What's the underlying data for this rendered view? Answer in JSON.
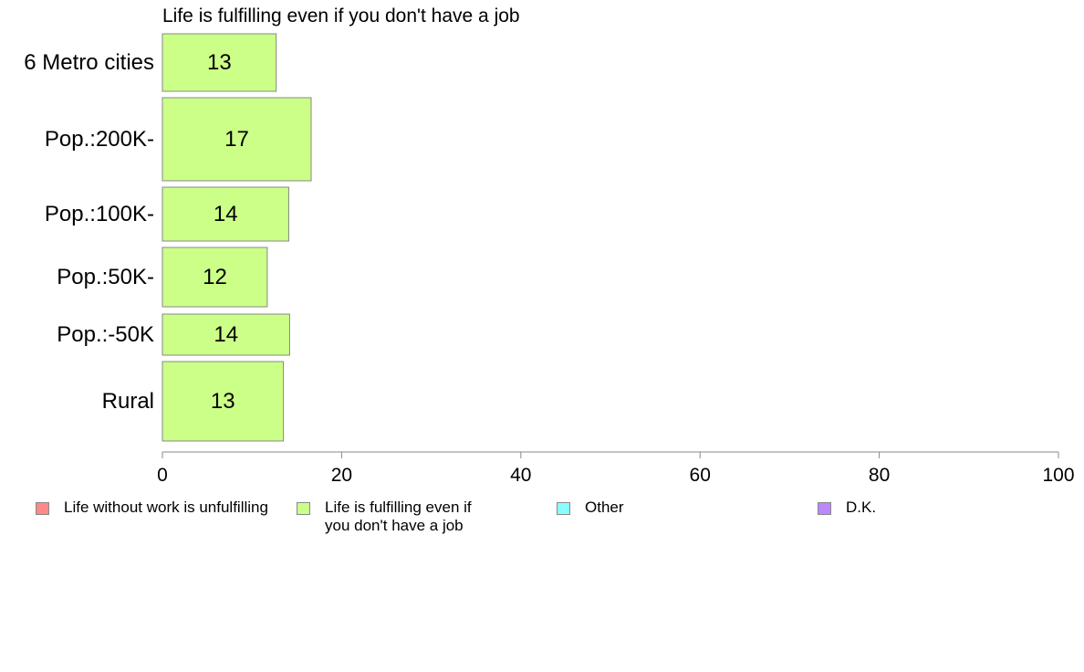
{
  "chart_data": {
    "type": "bar",
    "orientation": "horizontal",
    "title": "Life is fulfilling even if you don't have a job",
    "categories": [
      "6 Metro cities",
      "Pop.:200K-",
      "Pop.:100K-",
      "Pop.:50K-",
      "Pop.:-50K",
      "Rural"
    ],
    "series": [
      {
        "name": "Life is fulfilling even if you don't have a job",
        "color": "#ccff88",
        "values": [
          12.7,
          16.6,
          14.1,
          11.7,
          14.2,
          13.5
        ],
        "labels": [
          "13",
          "17",
          "14",
          "12",
          "14",
          "13"
        ]
      }
    ],
    "xlim": [
      0,
      100
    ],
    "xticks": [
      "0",
      "20",
      "40",
      "60",
      "80",
      "100"
    ],
    "grid": false,
    "legend_position": "bottom"
  },
  "legend": [
    {
      "label": "Life without work is unfulfilling",
      "color": "#ff8888"
    },
    {
      "label": "Life is fulfilling even if\nyou don't have a job",
      "color": "#ccff88"
    },
    {
      "label": "Other",
      "color": "#88ffff"
    },
    {
      "label": "D.K.",
      "color": "#bb88ff"
    }
  ]
}
